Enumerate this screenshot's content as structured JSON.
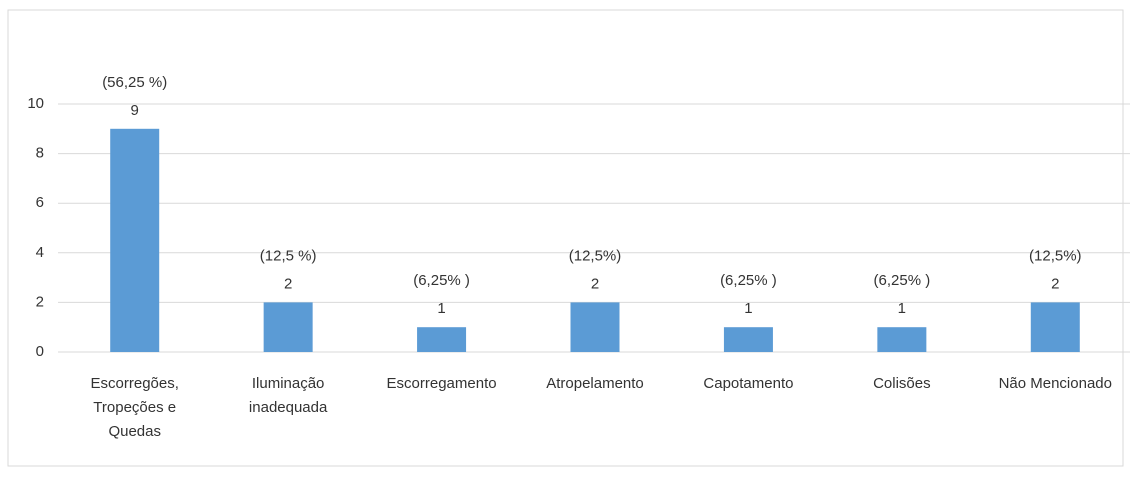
{
  "chart_data": {
    "type": "bar",
    "categories": [
      "Escorregões, Tropeções e Quedas",
      "Iluminação inadequada",
      "Escorregamento",
      "Atropelamento",
      "Capotamento",
      "Colisões",
      "Não Mencionado"
    ],
    "values": [
      9,
      2,
      1,
      2,
      1,
      1,
      2
    ],
    "percent_labels": [
      "(56,25 %)",
      "(12,5 %)",
      "(6,25% )",
      "(12,5%)",
      "(6,25% )",
      "(6,25% )",
      "(12,5%)"
    ],
    "color": "#5b9bd5",
    "ylim": [
      0,
      10
    ],
    "yticks": [
      0,
      2,
      4,
      6,
      8,
      10
    ],
    "grid": true
  }
}
